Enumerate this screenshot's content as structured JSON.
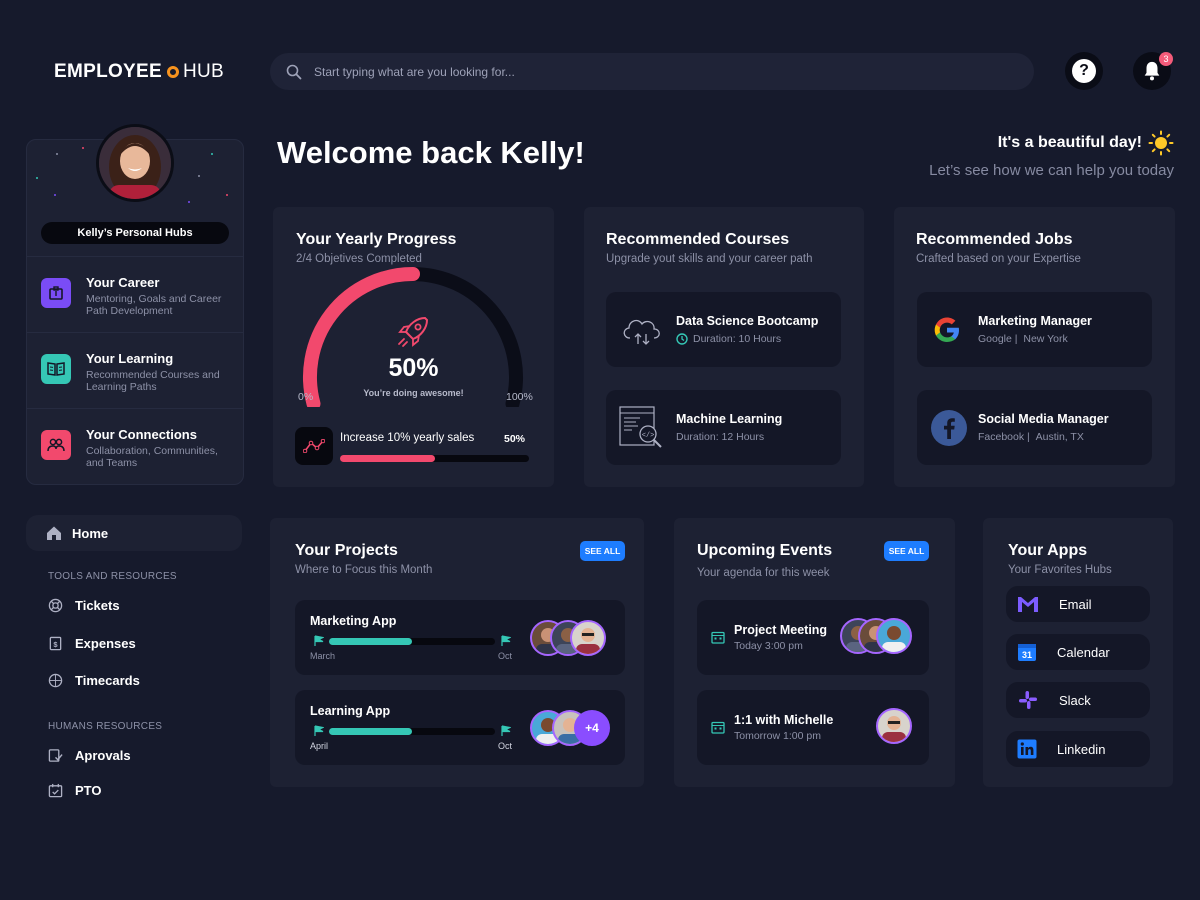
{
  "header": {
    "logo_left": "EMPLOYEE",
    "logo_right": "HUB",
    "search_placeholder": "Start typing what are you looking for...",
    "notifications_count": "3"
  },
  "profile": {
    "hub_label": "Kelly’s  Personal Hubs",
    "hubs": [
      {
        "title": "Your Career",
        "subtitle": "Mentoring,  Goals and Career Path Development",
        "color": "#7a4cf6"
      },
      {
        "title": "Your  Learning",
        "subtitle": "Recommended Courses and Learning Paths",
        "color": "#35c7b5"
      },
      {
        "title": "Your  Connections",
        "subtitle": "Collaboration, Communities, and Teams",
        "color": "#f2496d"
      }
    ]
  },
  "nav": {
    "home": "Home",
    "tools_heading": "TOOLS AND RESOURCES",
    "tools": [
      "Tickets",
      "Expenses",
      "Timecards"
    ],
    "humans_heading": "HUMANS RESOURCES",
    "humans": [
      "Aprovals",
      "PTO"
    ]
  },
  "welcome": {
    "title": "Welcome back Kelly!",
    "greeting": "It's a beautiful day!",
    "subtitle": "Let’s see how we can help you today"
  },
  "progress": {
    "title": "Your Yearly Progress",
    "subtitle": "2/4 Objetives Completed",
    "percent_label": "50%",
    "percent_value": 0.5,
    "message": "You’re doing awesome!",
    "min_label": "0%",
    "max_label": "100%",
    "goal_label": "Increase 10% yearly sales",
    "goal_percent_label": "50%",
    "goal_value": 0.5
  },
  "courses": {
    "title": "Recommended Courses",
    "subtitle": "Upgrade yout skills and your career path",
    "items": [
      {
        "title": "Data Science Bootcamp",
        "detail": "Duration: 10 Hours"
      },
      {
        "title": "Machine Learning",
        "detail": "Duration: 12 Hours"
      }
    ]
  },
  "jobs": {
    "title": "Recommended Jobs",
    "subtitle": "Crafted based on your Expertise",
    "items": [
      {
        "title": "Marketing Manager",
        "company": "Google |",
        "location": "New York"
      },
      {
        "title": "Social Media Manager",
        "company": "Facebook |",
        "location": "Austin, TX"
      }
    ]
  },
  "projects": {
    "title": "Your Projects",
    "subtitle": "Where to Focus this Month",
    "see_all": "SEE ALL",
    "items": [
      {
        "name": "Marketing App",
        "start": "March",
        "end": "Oct",
        "progress": 0.5
      },
      {
        "name": "Learning App",
        "start": "April",
        "end": "Oct",
        "progress": 0.5,
        "extra": "+4"
      }
    ]
  },
  "events": {
    "title": "Upcoming Events",
    "subtitle": "Your agenda for this week",
    "see_all": "SEE ALL",
    "items": [
      {
        "title": "Project Meeting",
        "time": "Today 3:00 pm"
      },
      {
        "title": "1:1 with Michelle",
        "time": "Tomorrow 1:00 pm"
      }
    ]
  },
  "apps": {
    "title": "Your Apps",
    "subtitle": "Your Favorites Hubs",
    "items": [
      "Email",
      "Calendar",
      "Slack",
      "Linkedin"
    ]
  },
  "colors": {
    "accent": "#f2496d",
    "teal": "#35c7b5",
    "blue": "#1e7dff",
    "purple": "#a566ff"
  }
}
